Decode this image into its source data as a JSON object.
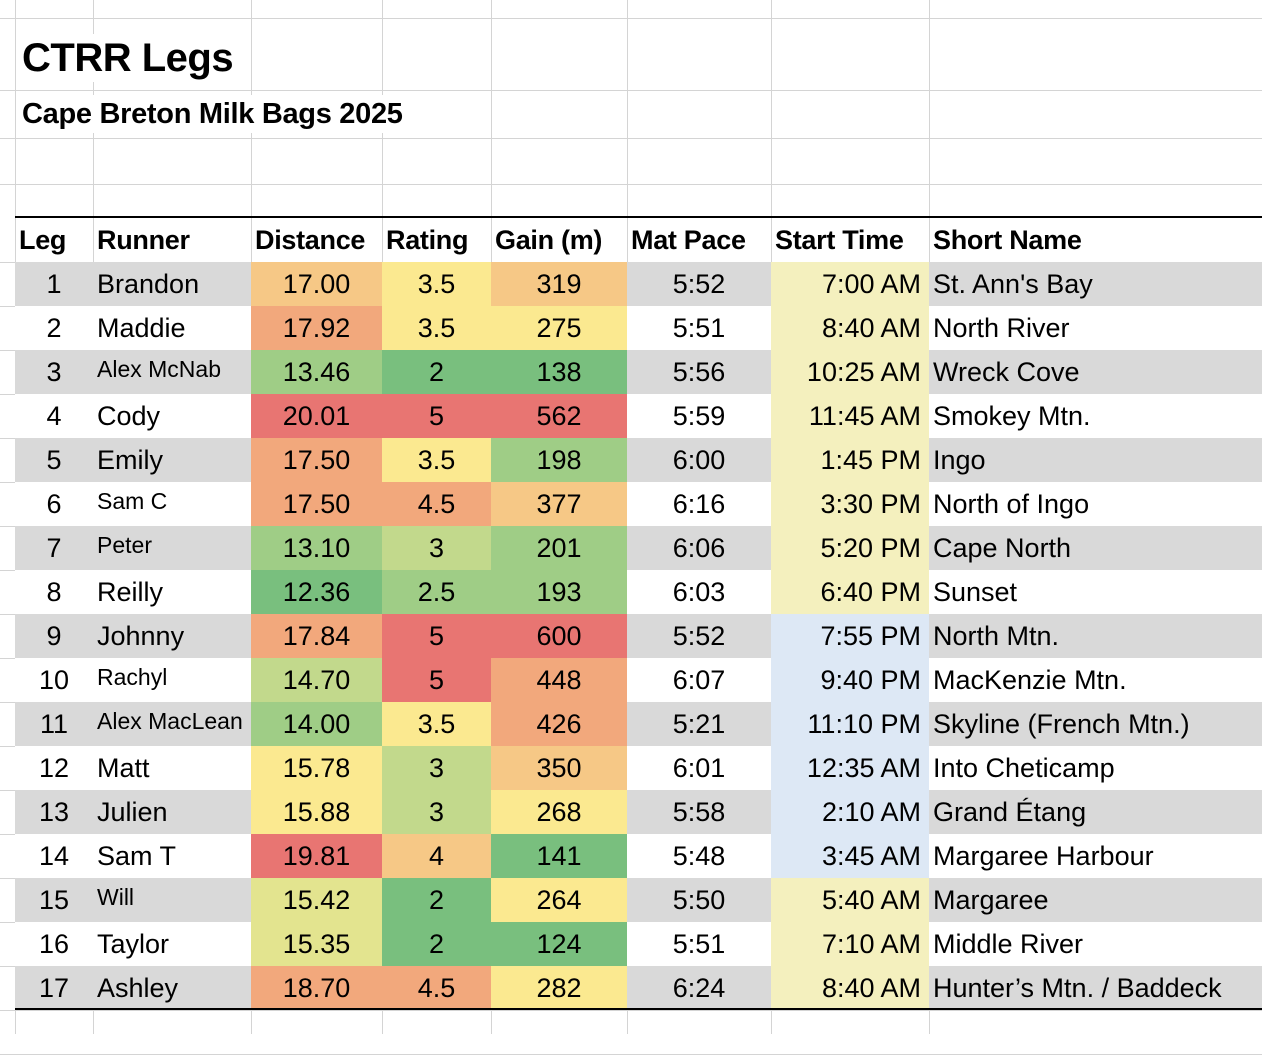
{
  "title": "CTRR Legs",
  "subtitle": "Cape Breton Milk Bags 2025",
  "headers": [
    "Leg",
    "Runner",
    "Distance",
    "Rating",
    "Gain (m)",
    "Mat Pace",
    "Start Time",
    "Short Name"
  ],
  "colors": {
    "green_dark": "#79bf7e",
    "green": "#9fcd86",
    "green_light": "#c2d98c",
    "yellow_green": "#e3e48f",
    "yellow": "#fbe990",
    "orange_light": "#f6c886",
    "orange": "#f2a87c",
    "red": "#e87572",
    "gray_row": "#d9d9d9",
    "day_time": "#f4f0be",
    "night_time": "#dde8f5"
  },
  "rows": [
    {
      "leg": "1",
      "runner": "Brandon",
      "distance": "17.00",
      "rating": "3.5",
      "gain": "319",
      "pace": "5:52",
      "start": "7:00 AM",
      "short": "St. Ann's Bay"
    },
    {
      "leg": "2",
      "runner": "Maddie",
      "distance": "17.92",
      "rating": "3.5",
      "gain": "275",
      "pace": "5:51",
      "start": "8:40 AM",
      "short": "North River"
    },
    {
      "leg": "3",
      "runner": "Alex McNab",
      "distance": "13.46",
      "rating": "2",
      "gain": "138",
      "pace": "5:56",
      "start": "10:25 AM",
      "short": "Wreck Cove"
    },
    {
      "leg": "4",
      "runner": "Cody",
      "distance": "20.01",
      "rating": "5",
      "gain": "562",
      "pace": "5:59",
      "start": "11:45 AM",
      "short": "Smokey Mtn."
    },
    {
      "leg": "5",
      "runner": "Emily",
      "distance": "17.50",
      "rating": "3.5",
      "gain": "198",
      "pace": "6:00",
      "start": "1:45 PM",
      "short": "Ingo"
    },
    {
      "leg": "6",
      "runner": "Sam C",
      "distance": "17.50",
      "rating": "4.5",
      "gain": "377",
      "pace": "6:16",
      "start": "3:30 PM",
      "short": "North of Ingo"
    },
    {
      "leg": "7",
      "runner": "Peter",
      "distance": "13.10",
      "rating": "3",
      "gain": "201",
      "pace": "6:06",
      "start": "5:20 PM",
      "short": "Cape North"
    },
    {
      "leg": "8",
      "runner": "Reilly",
      "distance": "12.36",
      "rating": "2.5",
      "gain": "193",
      "pace": "6:03",
      "start": "6:40 PM",
      "short": "Sunset"
    },
    {
      "leg": "9",
      "runner": "Johnny",
      "distance": "17.84",
      "rating": "5",
      "gain": "600",
      "pace": "5:52",
      "start": "7:55 PM",
      "short": "North Mtn."
    },
    {
      "leg": "10",
      "runner": "Rachyl",
      "distance": "14.70",
      "rating": "5",
      "gain": "448",
      "pace": "6:07",
      "start": "9:40 PM",
      "short": "MacKenzie Mtn."
    },
    {
      "leg": "11",
      "runner": "Alex MacLean",
      "distance": "14.00",
      "rating": "3.5",
      "gain": "426",
      "pace": "5:21",
      "start": "11:10 PM",
      "short": "Skyline (French Mtn.)"
    },
    {
      "leg": "12",
      "runner": "Matt",
      "distance": "15.78",
      "rating": "3",
      "gain": "350",
      "pace": "6:01",
      "start": "12:35 AM",
      "short": "Into Cheticamp"
    },
    {
      "leg": "13",
      "runner": "Julien",
      "distance": "15.88",
      "rating": "3",
      "gain": "268",
      "pace": "5:58",
      "start": "2:10 AM",
      "short": "Grand Étang"
    },
    {
      "leg": "14",
      "runner": "Sam T",
      "distance": "19.81",
      "rating": "4",
      "gain": "141",
      "pace": "5:48",
      "start": "3:45 AM",
      "short": "Margaree Harbour"
    },
    {
      "leg": "15",
      "runner": "Will",
      "distance": "15.42",
      "rating": "2",
      "gain": "264",
      "pace": "5:50",
      "start": "5:40 AM",
      "short": "Margaree"
    },
    {
      "leg": "16",
      "runner": "Taylor",
      "distance": "15.35",
      "rating": "2",
      "gain": "124",
      "pace": "5:51",
      "start": "7:10 AM",
      "short": "Middle River"
    },
    {
      "leg": "17",
      "runner": "Ashley",
      "distance": "18.70",
      "rating": "4.5",
      "gain": "282",
      "pace": "6:24",
      "start": "8:40 AM",
      "short": "Hunter’s Mtn. / Baddeck"
    }
  ],
  "cell_colors": {
    "distance": [
      "orange_light",
      "orange",
      "green",
      "red",
      "orange",
      "orange",
      "green",
      "green_dark",
      "orange",
      "green_light",
      "green",
      "yellow",
      "yellow",
      "red",
      "yellow_green",
      "yellow_green",
      "orange"
    ],
    "rating": [
      "yellow",
      "yellow",
      "green_dark",
      "red",
      "yellow",
      "orange",
      "green_light",
      "green",
      "red",
      "red",
      "yellow",
      "green_light",
      "green_light",
      "orange_light",
      "green_dark",
      "green_dark",
      "orange"
    ],
    "gain": [
      "orange_light",
      "yellow",
      "green_dark",
      "red",
      "green",
      "orange_light",
      "green",
      "green",
      "red",
      "orange",
      "orange",
      "orange_light",
      "yellow",
      "green_dark",
      "yellow",
      "green_dark",
      "yellow"
    ],
    "start": [
      "day_time",
      "day_time",
      "day_time",
      "day_time",
      "day_time",
      "day_time",
      "day_time",
      "day_time",
      "night_time",
      "night_time",
      "night_time",
      "night_time",
      "night_time",
      "night_time",
      "day_time",
      "day_time",
      "day_time"
    ]
  },
  "small_runner_font_rows": [
    2,
    5,
    6,
    9,
    10,
    14
  ]
}
